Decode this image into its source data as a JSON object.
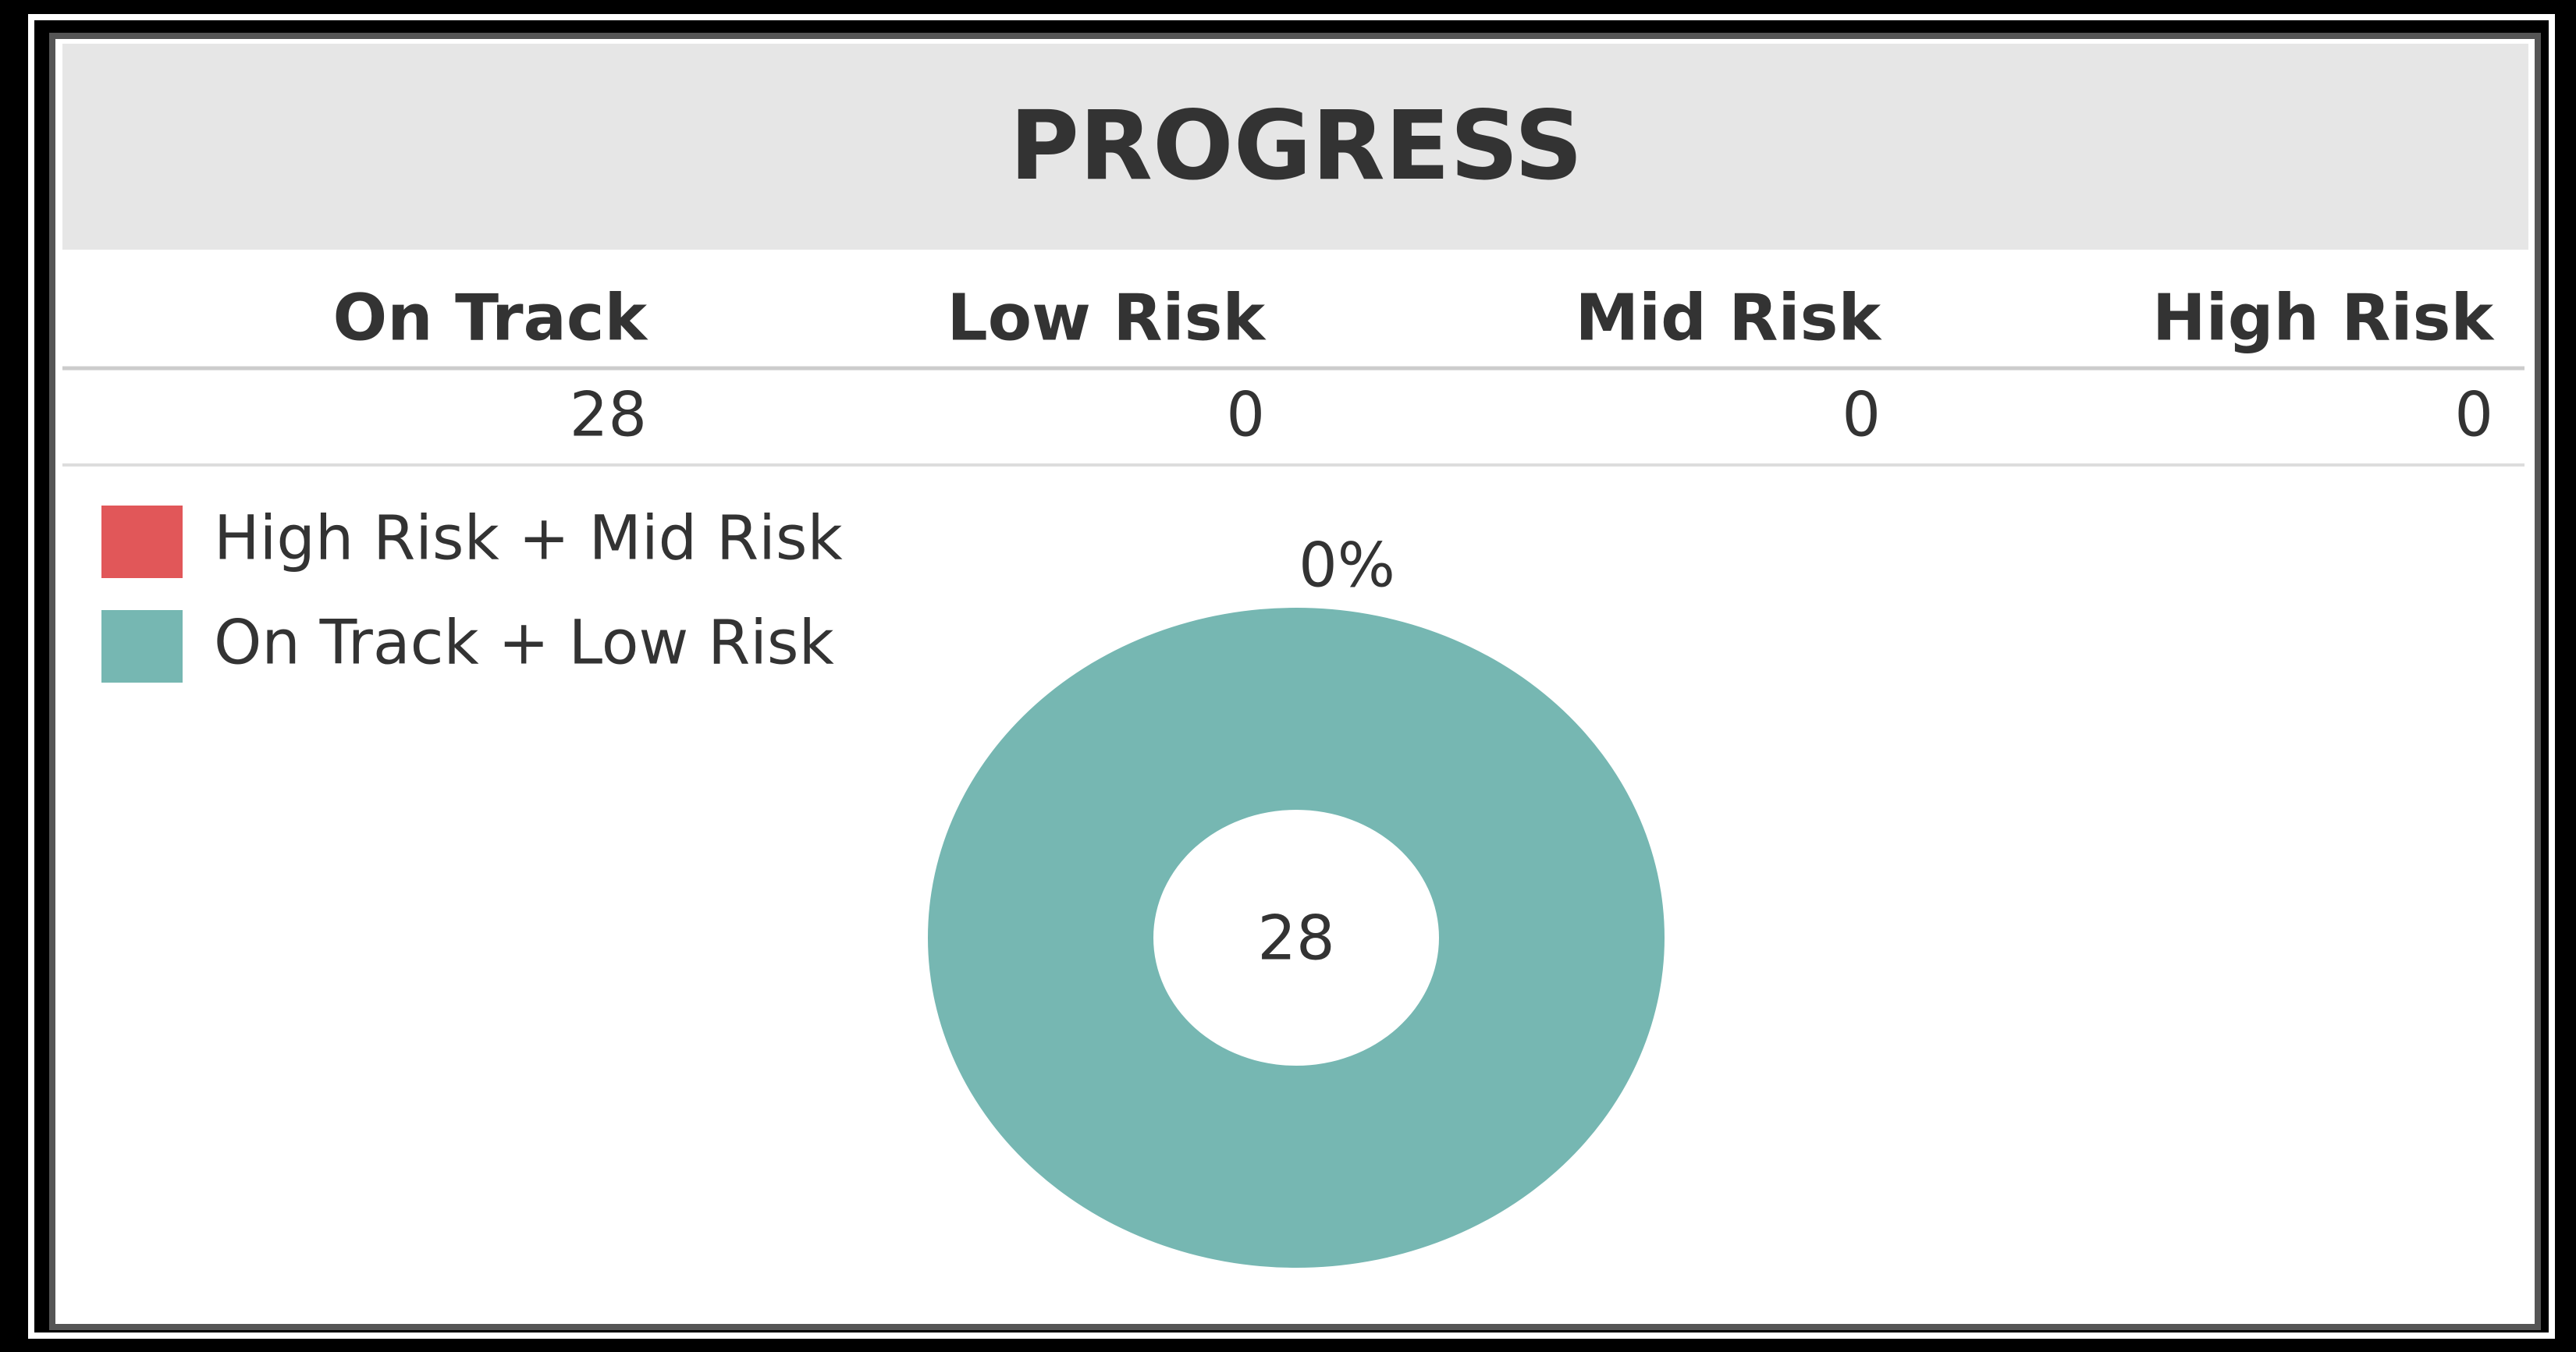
{
  "title": "PROGRESS",
  "table": {
    "headers": [
      "On Track",
      "Low Risk",
      "Mid Risk",
      "High Risk"
    ],
    "rows": [
      [
        28,
        0,
        0,
        0
      ]
    ]
  },
  "chart_data": {
    "type": "donut",
    "categories": [
      "High Risk + Mid Risk",
      "On Track + Low Risk"
    ],
    "values": [
      0,
      28
    ],
    "value_labels": [
      "0%",
      "28"
    ],
    "colors": [
      "#e15759",
      "#76b7b2"
    ]
  }
}
